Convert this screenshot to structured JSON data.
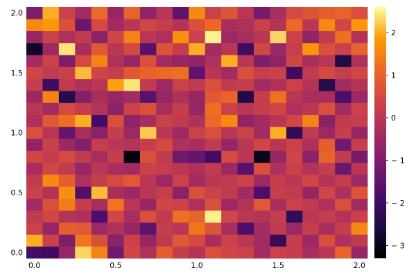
{
  "chart_data": {
    "type": "heatmap",
    "title": "",
    "xlabel": "",
    "ylabel": "",
    "x_ticks": [
      "0.0",
      "0.5",
      "1.0",
      "1.5",
      "2.0"
    ],
    "y_ticks": [
      "0.0",
      "0.5",
      "1.0",
      "1.5",
      "2.0"
    ],
    "xlim": [
      -0.05,
      2.05
    ],
    "ylim": [
      -0.05,
      2.05
    ],
    "colorbar": {
      "ticks": [
        "-3",
        "-2",
        "-1",
        "0",
        "1",
        "2"
      ],
      "range": [
        -3.3,
        2.6
      ]
    },
    "colormap": "inferno",
    "rows": 21,
    "cols": 21,
    "values": [
      [
        -1.9,
        -2.0,
        -0.6,
        2.3,
        1.5,
        -1.2,
        0.4,
        -0.2,
        0.9,
        0.2,
        -0.1,
        0.6,
        0.4,
        0.3,
        -0.4,
        0.3,
        0.2,
        -0.3,
        0.0,
        1.0,
        -0.6
      ],
      [
        2.0,
        0.3,
        -1.0,
        1.3,
        0.6,
        -0.8,
        0.3,
        -0.6,
        0.1,
        0.8,
        0.5,
        -0.3,
        0.3,
        0.0,
        -0.4,
        -2.1,
        0.2,
        -0.5,
        0.6,
        -0.2,
        0.1
      ],
      [
        0.3,
        -0.6,
        0.9,
        0.8,
        -0.5,
        -0.2,
        -0.6,
        -1.5,
        0.2,
        0.0,
        1.3,
        0.7,
        -0.3,
        -1.8,
        -0.4,
        0.1,
        -0.5,
        0.2,
        -0.3,
        0.2,
        1.6
      ],
      [
        0.1,
        0.4,
        -0.1,
        -0.2,
        -1.8,
        0.4,
        -0.3,
        0.6,
        0.1,
        1.2,
        1.0,
        2.5,
        0.4,
        0.0,
        -0.1,
        0.2,
        -2.2,
        0.0,
        0.2,
        -0.1,
        0.3
      ],
      [
        -0.4,
        0.6,
        1.4,
        0.2,
        -0.3,
        1.3,
        0.0,
        -0.6,
        0.4,
        0.3,
        -0.2,
        0.6,
        -0.5,
        -0.1,
        0.8,
        -0.3,
        0.3,
        0.1,
        -0.2,
        0.6,
        -0.4
      ],
      [
        0.3,
        -0.1,
        1.7,
        -1.7,
        2.1,
        -0.3,
        -0.5,
        0.0,
        0.2,
        -0.8,
        0.6,
        0.3,
        0.1,
        -0.4,
        -1.8,
        0.2,
        0.1,
        -0.6,
        0.4,
        -0.2,
        0.7
      ],
      [
        0.1,
        1.6,
        0.9,
        -0.2,
        0.2,
        0.5,
        0.8,
        0.0,
        -0.5,
        0.3,
        -0.4,
        0.0,
        0.1,
        0.3,
        -0.5,
        0.2,
        0.0,
        0.4,
        -0.1,
        0.2,
        -0.5
      ],
      [
        -0.3,
        0.4,
        0.1,
        -0.6,
        0.0,
        -0.3,
        -0.4,
        0.3,
        0.2,
        0.0,
        -0.2,
        0.1,
        -0.5,
        -1.6,
        0.6,
        -0.2,
        0.3,
        -0.1,
        0.2,
        -1.3,
        0.0
      ],
      [
        0.4,
        0.2,
        0.5,
        0.1,
        -0.3,
        0.2,
        -3.2,
        0.6,
        0.1,
        -1.2,
        -1.4,
        -1.9,
        0.5,
        0.0,
        -3.0,
        -0.6,
        0.4,
        -0.8,
        1.0,
        0.1,
        -1.1
      ],
      [
        -0.7,
        0.3,
        -0.5,
        -0.9,
        0.2,
        0.0,
        -0.1,
        0.2,
        0.5,
        -0.2,
        -0.3,
        0.1,
        -0.6,
        0.0,
        0.4,
        0.0,
        0.3,
        -0.2,
        0.9,
        -1.2,
        0.2
      ],
      [
        0.6,
        0.0,
        -1.4,
        -0.3,
        -0.8,
        0.2,
        -0.5,
        2.2,
        0.0,
        -0.5,
        0.3,
        0.6,
        0.0,
        0.3,
        -0.4,
        2.0,
        -2.2,
        0.1,
        -0.5,
        0.2,
        -0.6
      ],
      [
        -0.2,
        0.8,
        1.2,
        2.0,
        -1.9,
        0.6,
        -0.7,
        -0.3,
        0.3,
        0.1,
        -0.2,
        1.1,
        1.6,
        -0.7,
        -0.4,
        0.0,
        0.4,
        1.5,
        -0.8,
        0.1,
        0.2
      ],
      [
        0.0,
        -0.4,
        0.5,
        0.2,
        -0.1,
        -0.8,
        0.3,
        0.6,
        -0.3,
        0.2,
        -0.6,
        1.2,
        0.3,
        0.0,
        0.2,
        0.4,
        -0.2,
        0.0,
        0.6,
        -0.4,
        0.3
      ],
      [
        -0.5,
        1.5,
        -2.4,
        -0.9,
        -0.3,
        -0.6,
        -0.4,
        -1.6,
        -0.6,
        -0.2,
        -0.6,
        0.8,
        1.0,
        -2.5,
        0.2,
        1.2,
        0.0,
        -0.3,
        -0.3,
        -1.8,
        -0.5
      ],
      [
        0.2,
        -2.0,
        0.1,
        -0.2,
        0.0,
        1.9,
        2.4,
        0.1,
        -0.5,
        0.3,
        0.1,
        0.6,
        0.1,
        0.2,
        -0.4,
        -0.2,
        0.3,
        -0.1,
        -2.4,
        -0.4,
        -0.1
      ],
      [
        0.4,
        0.1,
        0.3,
        2.1,
        0.4,
        0.2,
        0.8,
        1.0,
        1.1,
        1.2,
        -1.5,
        0.0,
        -0.4,
        0.6,
        0.2,
        0.3,
        -2.0,
        0.1,
        0.5,
        0.2,
        0.4
      ],
      [
        -0.4,
        0.3,
        -1.0,
        0.5,
        1.5,
        -0.2,
        -0.6,
        0.6,
        -0.4,
        -0.6,
        -0.7,
        -0.2,
        2.0,
        0.0,
        -1.0,
        -0.7,
        0.4,
        -0.3,
        0.0,
        -2.5,
        -0.2
      ],
      [
        -2.9,
        -0.5,
        2.4,
        -0.3,
        0.8,
        0.0,
        0.5,
        -1.6,
        0.7,
        0.2,
        2.0,
        -0.4,
        0.0,
        -2.0,
        0.4,
        -0.5,
        0.2,
        1.8,
        0.6,
        0.3,
        1.0
      ],
      [
        -0.6,
        0.3,
        -0.2,
        0.1,
        -0.8,
        0.4,
        1.5,
        0.0,
        -0.2,
        1.7,
        0.3,
        2.5,
        -0.5,
        -0.3,
        0.0,
        2.3,
        0.3,
        -0.7,
        0.1,
        1.2,
        -0.1
      ],
      [
        1.6,
        1.8,
        0.6,
        -1.3,
        0.5,
        -0.4,
        0.0,
        0.4,
        0.2,
        -0.1,
        0.6,
        1.1,
        -0.3,
        -0.2,
        0.3,
        -0.1,
        1.1,
        0.0,
        1.6,
        0.4,
        1.8
      ],
      [
        -1.0,
        2.0,
        0.3,
        -0.4,
        1.1,
        -0.6,
        1.0,
        -0.7,
        0.0,
        -1.5,
        1.6,
        0.3,
        0.7,
        0.0,
        -1.1,
        -0.3,
        0.5,
        0.7,
        0.9,
        1.0,
        0.6
      ]
    ]
  }
}
